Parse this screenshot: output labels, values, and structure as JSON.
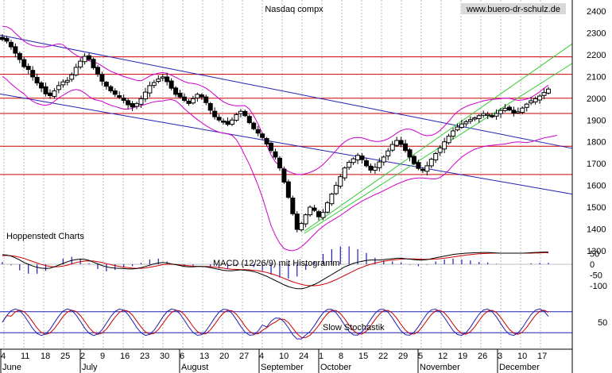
{
  "chart_data": {
    "type": "candlestick",
    "title": "Nasdaq compx",
    "watermark": "www.buero-dr-schulz.de",
    "source_label": "Hoppenstedt Charts",
    "price_axis": {
      "ylim": [
        1200,
        2450
      ],
      "ticks": [
        "2400",
        "2300",
        "2200",
        "2100",
        "2000",
        "1900",
        "1800",
        "1700",
        "1600",
        "1500",
        "1400",
        "1300"
      ],
      "tick_values": [
        2400,
        2300,
        2200,
        2100,
        2000,
        1900,
        1800,
        1700,
        1600,
        1500,
        1400,
        1300
      ]
    },
    "x_axis": {
      "day_labels": [
        "4",
        "11",
        "18",
        "25",
        "2",
        "9",
        "16",
        "23",
        "30",
        "6",
        "13",
        "20",
        "27",
        "4",
        "10",
        "24",
        "1",
        "8",
        "15",
        "22",
        "29",
        "5",
        "12",
        "19",
        "26",
        "3",
        "10",
        "17"
      ],
      "month_labels": [
        "June",
        "July",
        "August",
        "September",
        "October",
        "November",
        "December"
      ],
      "month_start_index": [
        0,
        4,
        9,
        13,
        16,
        21,
        25
      ]
    },
    "horizontal_levels": [
      2190,
      2110,
      2000,
      1930,
      1780,
      1650
    ],
    "closes": [
      2270,
      2262,
      2236,
      2207,
      2178,
      2145,
      2132,
      2098,
      2070,
      2047,
      2020,
      2012,
      2034,
      2058,
      2075,
      2082,
      2108,
      2142,
      2170,
      2192,
      2178,
      2140,
      2110,
      2078,
      2055,
      2034,
      2018,
      2005,
      1990,
      1970,
      1960,
      1975,
      1998,
      2028,
      2058,
      2072,
      2088,
      2098,
      2076,
      2046,
      2018,
      2006,
      1990,
      1976,
      1998,
      2018,
      2006,
      1980,
      1945,
      1915,
      1900,
      1890,
      1880,
      1900,
      1925,
      1940,
      1920,
      1888,
      1860,
      1840,
      1820,
      1790,
      1760,
      1730,
      1680,
      1615,
      1545,
      1470,
      1398,
      1425,
      1465,
      1500,
      1485,
      1456,
      1476,
      1520,
      1560,
      1600,
      1640,
      1680,
      1706,
      1722,
      1738,
      1718,
      1690,
      1670,
      1683,
      1708,
      1730,
      1758,
      1788,
      1806,
      1788,
      1760,
      1730,
      1700,
      1678,
      1670,
      1690,
      1720,
      1746,
      1772,
      1800,
      1826,
      1850,
      1868,
      1882,
      1892,
      1902,
      1910,
      1920,
      1930,
      1926,
      1918,
      1930,
      1944,
      1954,
      1946,
      1932,
      1938,
      1955,
      1973,
      1988,
      1998,
      2010,
      2026,
      2042
    ],
    "bollinger_upper": [
      2330,
      2328,
      2318,
      2298,
      2280,
      2262,
      2250,
      2242,
      2238,
      2236,
      2236,
      2240,
      2245,
      2250,
      2246,
      2228,
      2212,
      2198,
      2188,
      2180,
      2172,
      2166,
      2160,
      2148,
      2135,
      2124,
      2116,
      2108,
      2100,
      2094,
      2088,
      2082,
      2080,
      2090,
      2102,
      2110,
      2115,
      2118,
      2114,
      2106,
      2096,
      2086,
      2076,
      2070,
      2068,
      2064,
      2056,
      2046,
      2032,
      2015,
      1998,
      1984,
      1974,
      1968,
      1965,
      1966,
      1966,
      1950,
      1920,
      1882,
      1838,
      1784,
      1740,
      1708,
      1688,
      1674,
      1664,
      1656,
      1650,
      1650,
      1654,
      1660,
      1668,
      1680,
      1696,
      1716,
      1738,
      1760,
      1782,
      1800,
      1812,
      1818,
      1820,
      1818,
      1812,
      1806,
      1802,
      1802,
      1806,
      1814,
      1826,
      1840,
      1852,
      1858,
      1858,
      1852,
      1842,
      1832,
      1828,
      1830,
      1838,
      1852,
      1872,
      1894,
      1918,
      1938,
      1952,
      1962,
      1970,
      1976,
      1982,
      1988,
      1992,
      1994,
      1996,
      1998,
      2000,
      2000,
      1994,
      1990,
      1992,
      1996,
      2004,
      2016,
      2030,
      2046,
      2060
    ],
    "bollinger_lower": [
      2100,
      2086,
      2066,
      2050,
      2034,
      2020,
      2000,
      1986,
      1976,
      1970,
      1968,
      1972,
      1986,
      2002,
      2014,
      2026,
      2036,
      2040,
      2036,
      2024,
      2008,
      1996,
      1990,
      1986,
      1976,
      1968,
      1962,
      1956,
      1950,
      1950,
      1954,
      1962,
      1966,
      1972,
      1978,
      1984,
      1986,
      1988,
      1992,
      1994,
      1988,
      1972,
      1952,
      1934,
      1918,
      1902,
      1888,
      1874,
      1862,
      1852,
      1844,
      1840,
      1836,
      1830,
      1810,
      1776,
      1736,
      1696,
      1650,
      1600,
      1545,
      1480,
      1416,
      1370,
      1334,
      1310,
      1302,
      1300,
      1306,
      1318,
      1336,
      1356,
      1376,
      1396,
      1412,
      1426,
      1438,
      1450,
      1462,
      1476,
      1490,
      1504,
      1516,
      1528,
      1538,
      1548,
      1558,
      1566,
      1576,
      1586,
      1596,
      1606,
      1614,
      1622,
      1628,
      1632,
      1634,
      1634,
      1632,
      1630,
      1630,
      1636,
      1650,
      1670,
      1692,
      1712,
      1730,
      1744,
      1756,
      1766,
      1772,
      1778,
      1782,
      1784,
      1786,
      1788,
      1790,
      1794,
      1798,
      1800,
      1798,
      1796,
      1800,
      1806,
      1812,
      1818,
      1822,
      1826,
      1830
    ],
    "macd": {
      "label": "MACD (12/26/9) mit Histogramm",
      "ticks": [
        "50",
        "0",
        "-50",
        "-100"
      ],
      "tick_values": [
        50,
        0,
        -50,
        -100
      ],
      "ylim": [
        -130,
        80
      ],
      "macd_line": [
        45,
        43,
        38,
        30,
        20,
        8,
        0,
        -8,
        -14,
        -18,
        -20,
        -18,
        -12,
        -4,
        4,
        12,
        18,
        22,
        24,
        23,
        18,
        10,
        2,
        -6,
        -12,
        -16,
        -18,
        -19,
        -20,
        -22,
        -22,
        -20,
        -16,
        -10,
        -4,
        2,
        6,
        8,
        6,
        2,
        -2,
        -6,
        -10,
        -12,
        -12,
        -10,
        -10,
        -12,
        -16,
        -20,
        -24,
        -28,
        -30,
        -30,
        -28,
        -26,
        -28,
        -30,
        -34,
        -40,
        -48,
        -56,
        -66,
        -76,
        -86,
        -96,
        -104,
        -110,
        -114,
        -114,
        -110,
        -102,
        -94,
        -84,
        -72,
        -60,
        -48,
        -36,
        -24,
        -12,
        -4,
        4,
        10,
        14,
        18,
        20,
        20,
        20,
        22,
        24,
        26,
        28,
        28,
        26,
        24,
        22,
        20,
        20,
        22,
        26,
        30,
        34,
        38,
        42,
        46,
        48,
        50,
        52,
        53,
        54,
        54,
        55,
        55,
        54,
        53,
        52,
        52,
        52,
        52,
        52,
        52,
        53,
        54,
        55,
        56,
        57,
        57
      ],
      "signal_line": [
        40,
        41,
        40,
        37,
        33,
        27,
        20,
        13,
        6,
        -1,
        -6,
        -10,
        -12,
        -11,
        -8,
        -4,
        2,
        8,
        12,
        15,
        16,
        15,
        12,
        8,
        3,
        -2,
        -6,
        -10,
        -13,
        -16,
        -18,
        -19,
        -19,
        -17,
        -14,
        -10,
        -6,
        -2,
        0,
        0,
        -1,
        -3,
        -5,
        -7,
        -9,
        -10,
        -10,
        -10,
        -11,
        -13,
        -15,
        -18,
        -21,
        -23,
        -24,
        -25,
        -25,
        -26,
        -28,
        -30,
        -34,
        -38,
        -44,
        -50,
        -58,
        -66,
        -74,
        -82,
        -88,
        -94,
        -98,
        -100,
        -100,
        -98,
        -94,
        -88,
        -80,
        -72,
        -62,
        -52,
        -42,
        -32,
        -22,
        -14,
        -6,
        0,
        6,
        10,
        14,
        17,
        20,
        22,
        24,
        25,
        25,
        25,
        24,
        23,
        23,
        23,
        24,
        26,
        28,
        31,
        34,
        37,
        40,
        43,
        45,
        47,
        49,
        50,
        51,
        52,
        52,
        52,
        52,
        52,
        52,
        52,
        52,
        52,
        52,
        53,
        53,
        54,
        54
      ]
    },
    "stochastic": {
      "label": "Slow Stochastik",
      "ticks": [
        "50"
      ],
      "tick_values": [
        50
      ],
      "ylim": [
        0,
        100
      ]
    }
  }
}
